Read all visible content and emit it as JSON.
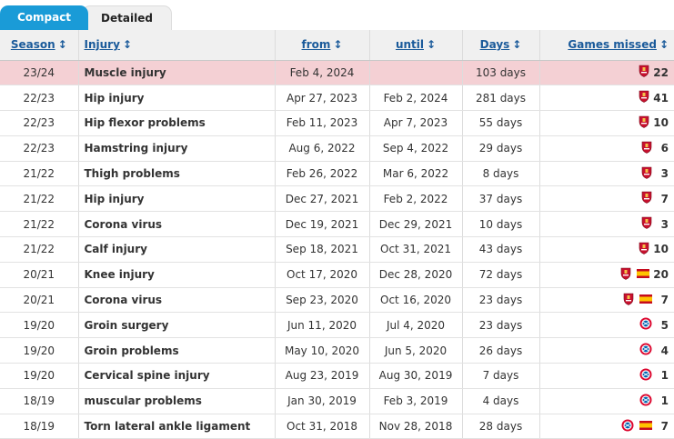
{
  "tabs": {
    "compact": "Compact",
    "detailed": "Detailed"
  },
  "columns": {
    "season": "Season",
    "injury": "Injury",
    "from": "from",
    "until": "until",
    "days": "Days",
    "games": "Games missed"
  },
  "sort_arrow": "↕",
  "colors": {
    "tab_active": "#1a9bd7",
    "current_row": "#f4d0d4",
    "header_link": "#1a5a9a"
  },
  "rows": [
    {
      "season": "23/24",
      "injury": "Muscle injury",
      "from": "Feb 4, 2024",
      "until": "",
      "days": "103 days",
      "games": "22",
      "clubs": [
        "liverpool-crest-icon"
      ],
      "current": true
    },
    {
      "season": "22/23",
      "injury": "Hip injury",
      "from": "Apr 27, 2023",
      "until": "Feb 2, 2024",
      "days": "281 days",
      "games": "41",
      "clubs": [
        "liverpool-crest-icon"
      ]
    },
    {
      "season": "22/23",
      "injury": "Hip flexor problems",
      "from": "Feb 11, 2023",
      "until": "Apr 7, 2023",
      "days": "55 days",
      "games": "10",
      "clubs": [
        "liverpool-crest-icon"
      ]
    },
    {
      "season": "22/23",
      "injury": "Hamstring injury",
      "from": "Aug 6, 2022",
      "until": "Sep 4, 2022",
      "days": "29 days",
      "games": "6",
      "clubs": [
        "liverpool-crest-icon"
      ]
    },
    {
      "season": "21/22",
      "injury": "Thigh problems",
      "from": "Feb 26, 2022",
      "until": "Mar 6, 2022",
      "days": "8 days",
      "games": "3",
      "clubs": [
        "liverpool-crest-icon"
      ]
    },
    {
      "season": "21/22",
      "injury": "Hip injury",
      "from": "Dec 27, 2021",
      "until": "Feb 2, 2022",
      "days": "37 days",
      "games": "7",
      "clubs": [
        "liverpool-crest-icon"
      ]
    },
    {
      "season": "21/22",
      "injury": "Corona virus",
      "from": "Dec 19, 2021",
      "until": "Dec 29, 2021",
      "days": "10 days",
      "games": "3",
      "clubs": [
        "liverpool-crest-icon"
      ]
    },
    {
      "season": "21/22",
      "injury": "Calf injury",
      "from": "Sep 18, 2021",
      "until": "Oct 31, 2021",
      "days": "43 days",
      "games": "10",
      "clubs": [
        "liverpool-crest-icon"
      ]
    },
    {
      "season": "20/21",
      "injury": "Knee injury",
      "from": "Oct 17, 2020",
      "until": "Dec 28, 2020",
      "days": "72 days",
      "games": "20",
      "clubs": [
        "liverpool-crest-icon",
        "spain-flag-icon"
      ]
    },
    {
      "season": "20/21",
      "injury": "Corona virus",
      "from": "Sep 23, 2020",
      "until": "Oct 16, 2020",
      "days": "23 days",
      "games": "7",
      "clubs": [
        "liverpool-crest-icon",
        "spain-flag-icon"
      ]
    },
    {
      "season": "19/20",
      "injury": "Groin surgery",
      "from": "Jun 11, 2020",
      "until": "Jul 4, 2020",
      "days": "23 days",
      "games": "5",
      "clubs": [
        "bayern-crest-icon"
      ]
    },
    {
      "season": "19/20",
      "injury": "Groin problems",
      "from": "May 10, 2020",
      "until": "Jun 5, 2020",
      "days": "26 days",
      "games": "4",
      "clubs": [
        "bayern-crest-icon"
      ]
    },
    {
      "season": "19/20",
      "injury": "Cervical spine injury",
      "from": "Aug 23, 2019",
      "until": "Aug 30, 2019",
      "days": "7 days",
      "games": "1",
      "clubs": [
        "bayern-crest-icon"
      ]
    },
    {
      "season": "18/19",
      "injury": "muscular problems",
      "from": "Jan 30, 2019",
      "until": "Feb 3, 2019",
      "days": "4 days",
      "games": "1",
      "clubs": [
        "bayern-crest-icon"
      ]
    },
    {
      "season": "18/19",
      "injury": "Torn lateral ankle ligament",
      "from": "Oct 31, 2018",
      "until": "Nov 28, 2018",
      "days": "28 days",
      "games": "7",
      "clubs": [
        "bayern-crest-icon",
        "spain-flag-icon"
      ]
    }
  ]
}
